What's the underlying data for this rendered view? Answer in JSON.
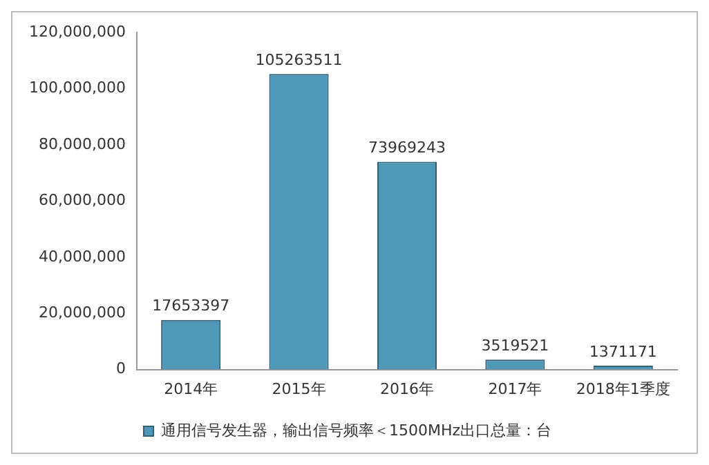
{
  "chart_data": {
    "type": "bar",
    "categories": [
      "2014年",
      "2015年",
      "2016年",
      "2017年",
      "2018年1季度"
    ],
    "series": [
      {
        "name": "通用信号发生器，输出信号频率＜1500MHz出口总量：台",
        "color": "#4f98b8",
        "values": [
          17653397,
          105263511,
          73969243,
          3519521,
          1371171
        ]
      }
    ],
    "ylim": [
      0,
      120000000
    ],
    "yticks": [
      {
        "value": 0,
        "label": "0"
      },
      {
        "value": 20000000,
        "label": "20,000,000"
      },
      {
        "value": 40000000,
        "label": "40,000,000"
      },
      {
        "value": 60000000,
        "label": "60,000,000"
      },
      {
        "value": 80000000,
        "label": "80,000,000"
      },
      {
        "value": 100000000,
        "label": "100,000,000"
      },
      {
        "value": 120000000,
        "label": "120,000,000"
      }
    ],
    "grid": false,
    "legend": "bottom",
    "data_labels": true
  }
}
